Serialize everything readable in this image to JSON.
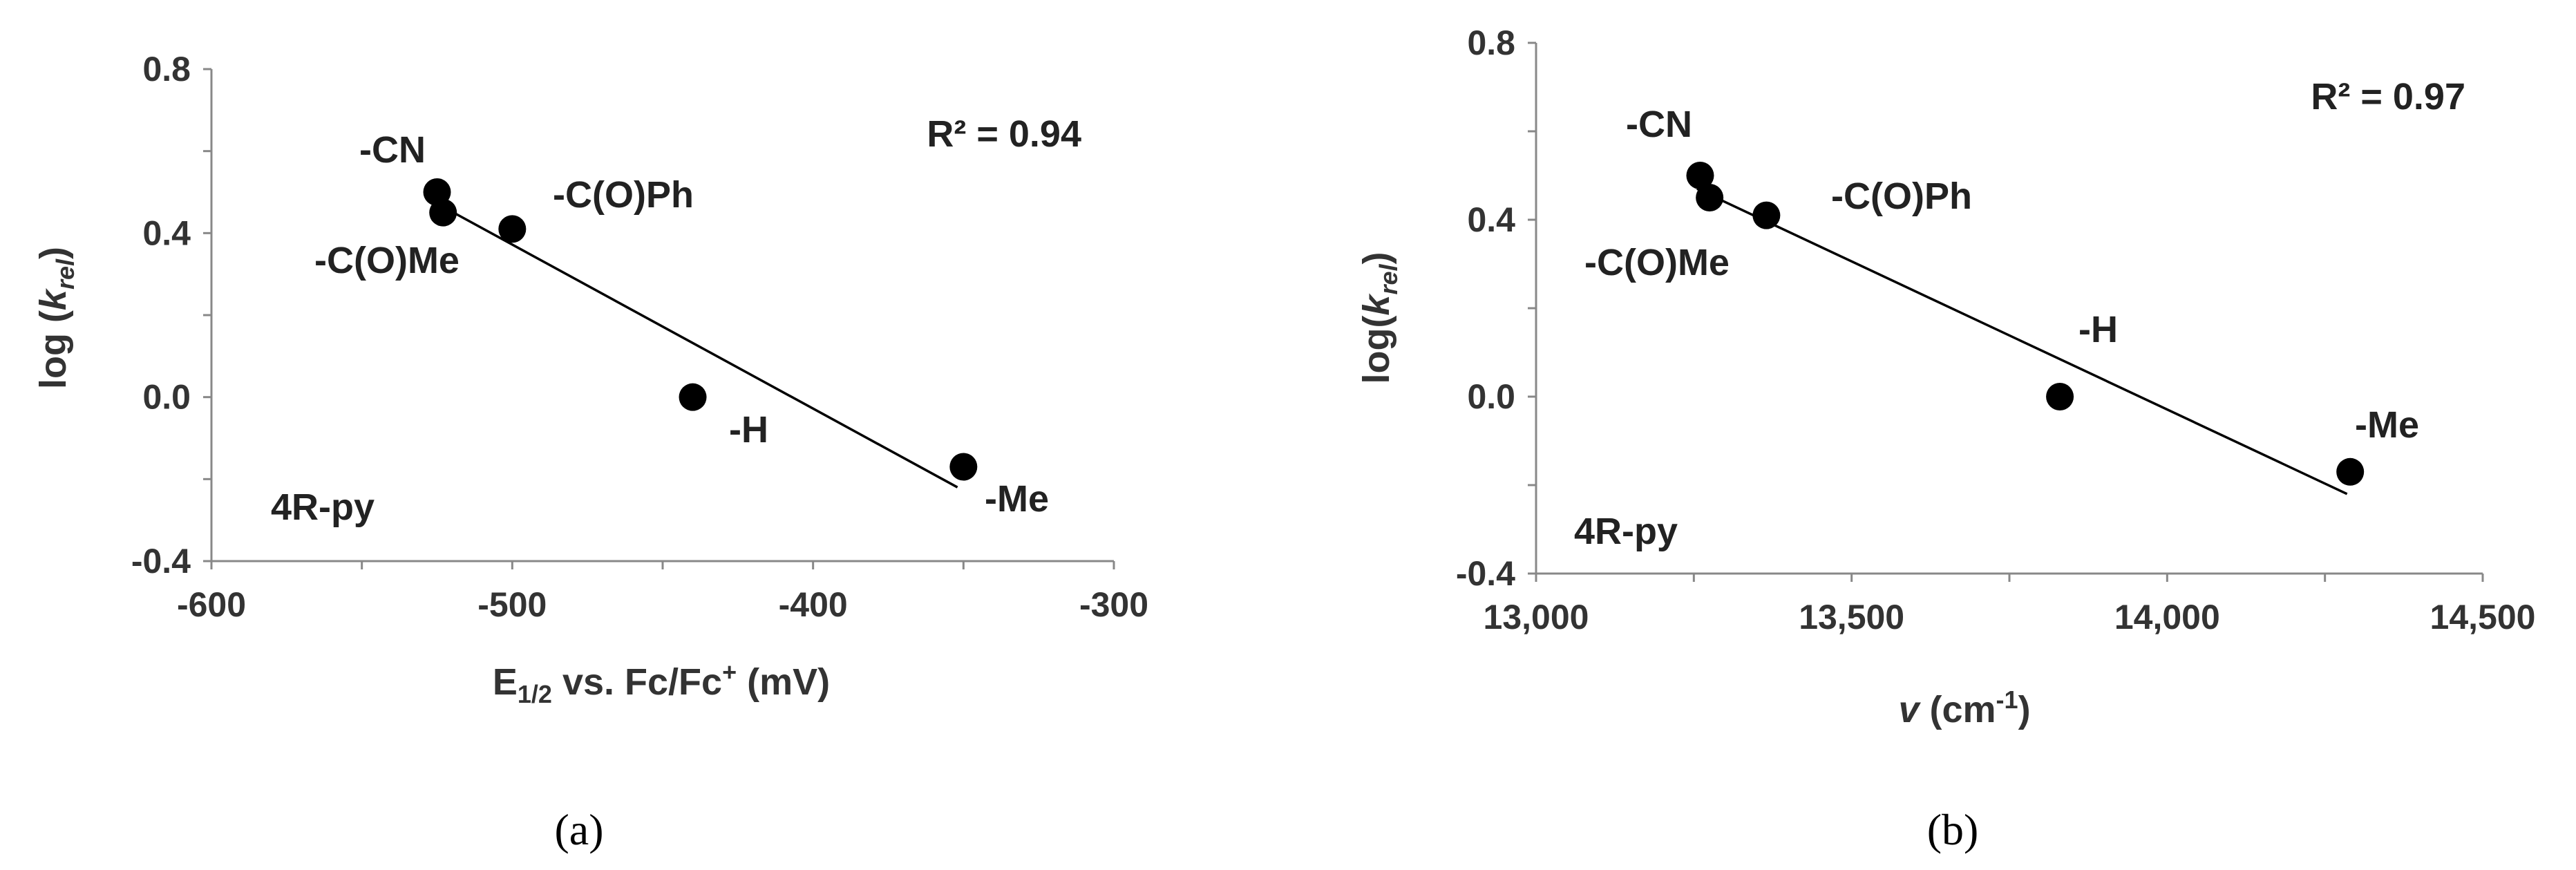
{
  "chart_data": [
    {
      "type": "scatter",
      "caption": "(a)",
      "xlabel": {
        "main": "E",
        "sub": "1/2",
        "rest": " vs. Fc/Fc",
        "sup": "+",
        "end": " (mV)"
      },
      "ylabel": {
        "pre": "log (",
        "var": "k",
        "sub": "rel",
        "post": ")"
      },
      "xlim": [
        -600,
        -300
      ],
      "ylim": [
        -0.4,
        0.8
      ],
      "xticks": [
        "-600",
        "-500",
        "-400",
        "-300"
      ],
      "yticks": [
        "-0.4",
        "0.0",
        "0.4",
        "0.8"
      ],
      "points": [
        {
          "label": "-CN",
          "x": -525,
          "y": 0.5
        },
        {
          "label": "-C(O)Me",
          "x": -523,
          "y": 0.45
        },
        {
          "label": "-C(O)Ph",
          "x": -500,
          "y": 0.41
        },
        {
          "label": "-H",
          "x": -440,
          "y": 0.0
        },
        {
          "label": "-Me",
          "x": -350,
          "y": -0.17
        }
      ],
      "trendline": {
        "x": [
          -522,
          -352
        ],
        "y": [
          0.46,
          -0.22
        ]
      },
      "r_squared": "R² = 0.94",
      "annotation": "4R-py",
      "grid": false
    },
    {
      "type": "scatter",
      "caption": "(b)",
      "xlabel": {
        "var": "v",
        "rest": " (cm",
        "sup": "-1",
        "end": ")"
      },
      "ylabel": {
        "pre": "log(",
        "var": "k",
        "sub": "rel",
        "post": ")"
      },
      "xlim": [
        13000,
        14500
      ],
      "ylim": [
        -0.4,
        0.8
      ],
      "xticks": [
        "13,000",
        "13,500",
        "14,000",
        "14,500"
      ],
      "yticks": [
        "-0.4",
        "0.0",
        "0.4",
        "0.8"
      ],
      "points": [
        {
          "label": "-CN",
          "x": 13260,
          "y": 0.5
        },
        {
          "label": "-C(O)Me",
          "x": 13275,
          "y": 0.45
        },
        {
          "label": "-C(O)Ph",
          "x": 13365,
          "y": 0.41
        },
        {
          "label": "-H",
          "x": 13830,
          "y": 0.0
        },
        {
          "label": "-Me",
          "x": 14290,
          "y": -0.17
        }
      ],
      "trendline": {
        "x": [
          13255,
          14285
        ],
        "y": [
          0.47,
          -0.22
        ]
      },
      "r_squared": "R² = 0.97",
      "annotation": "4R-py",
      "grid": false
    }
  ]
}
